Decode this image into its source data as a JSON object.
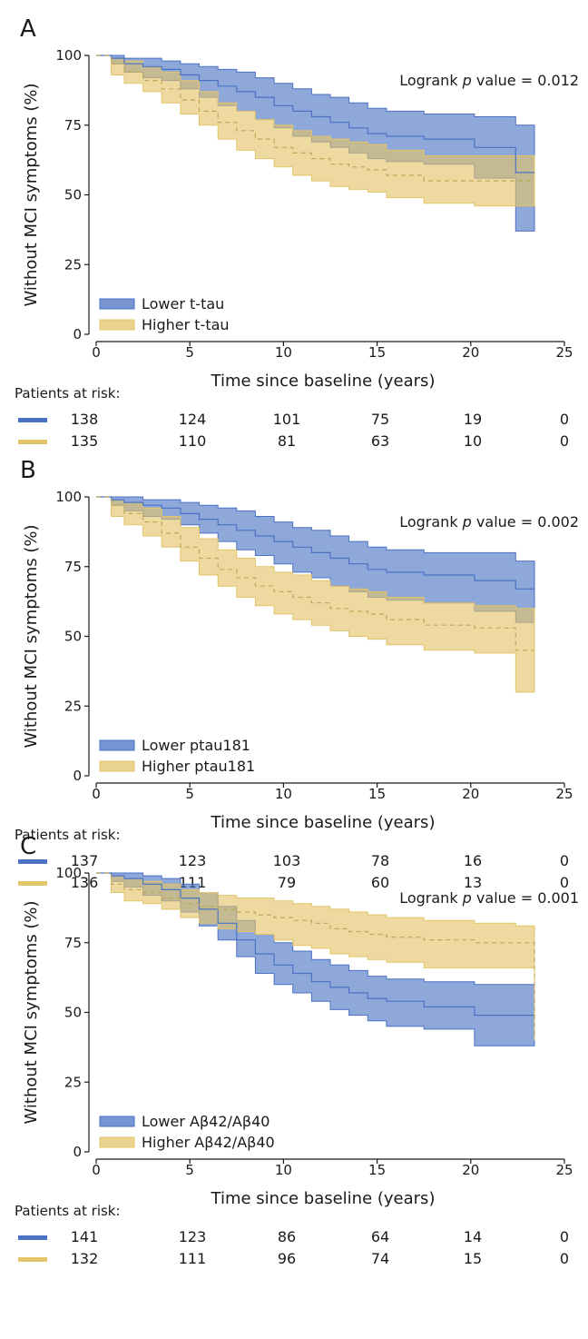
{
  "figure": {
    "colors": {
      "lower": "#4a72c4",
      "higher": "#e3c468",
      "lower_fill": "#4a72c4",
      "higher_fill": "#e3c468",
      "axis": "#1a1a1a"
    }
  },
  "chart_data": [
    {
      "panel_label": "A",
      "type": "line",
      "ylabel": "Without MCI symptoms (%)",
      "xlabel": "Time since baseline (years)",
      "xlim": [
        0,
        25
      ],
      "ylim": [
        0,
        100
      ],
      "xticks": [
        0,
        5,
        10,
        15,
        20,
        25
      ],
      "xtick_labels": [
        "0",
        "5",
        "10",
        "15",
        "20",
        "25"
      ],
      "yticks": [
        0,
        25,
        50,
        75,
        100
      ],
      "ytick_labels": [
        "0",
        "25",
        "50",
        "75",
        "100"
      ],
      "grid": false,
      "annotation": {
        "prefix": "Logrank ",
        "italic": "p",
        "suffix": " value = 0.012"
      },
      "legend_position": "bottom-left",
      "series": [
        {
          "name": "Lower t-tau",
          "color": "#4a72c4",
          "x": [
            0,
            0.8,
            1.5,
            2.5,
            3.5,
            4.5,
            5.5,
            6.5,
            7.5,
            8.5,
            9.5,
            10.5,
            11.5,
            12.5,
            13.5,
            14.5,
            15.5,
            17.5,
            20.2,
            22.4,
            23.4
          ],
          "y": [
            100,
            99,
            97,
            96,
            95,
            93,
            91,
            89,
            87,
            85,
            82,
            80,
            78,
            76,
            74,
            72,
            71,
            70,
            67,
            58,
            58
          ],
          "lower": [
            100,
            97,
            94,
            92,
            91,
            88,
            85,
            82,
            80,
            77,
            74,
            71,
            69,
            67,
            65,
            63,
            62,
            61,
            56,
            37,
            37
          ],
          "upper": [
            100,
            100,
            99,
            99,
            98,
            97,
            96,
            95,
            94,
            92,
            90,
            88,
            86,
            85,
            83,
            81,
            80,
            79,
            78,
            75,
            75
          ]
        },
        {
          "name": "Higher t-tau",
          "color": "#e3c468",
          "x": [
            0,
            0.8,
            1.5,
            2.5,
            3.5,
            4.5,
            5.5,
            6.5,
            7.5,
            8.5,
            9.5,
            10.5,
            11.5,
            12.5,
            13.5,
            14.5,
            15.5,
            17.5,
            20.2,
            22.4,
            23.4
          ],
          "y": [
            100,
            97,
            94,
            91,
            88,
            84,
            80,
            76,
            73,
            70,
            67,
            65,
            63,
            61,
            60,
            59,
            57,
            55,
            55,
            55,
            55
          ],
          "lower": [
            100,
            93,
            90,
            87,
            83,
            79,
            75,
            70,
            66,
            63,
            60,
            57,
            55,
            53,
            52,
            51,
            49,
            47,
            46,
            46,
            46
          ],
          "upper": [
            100,
            99,
            98,
            96,
            94,
            91,
            87,
            83,
            80,
            77,
            75,
            73,
            71,
            70,
            69,
            68,
            66,
            64,
            64,
            64,
            64
          ]
        }
      ],
      "at_risk": {
        "label": "Patients at risk:",
        "times": [
          0,
          5,
          10,
          15,
          20,
          25
        ],
        "rows": [
          {
            "color": "#4a72c4",
            "values": [
              "138",
              "124",
              "101",
              "75",
              "19",
              "0"
            ]
          },
          {
            "color": "#e3c468",
            "values": [
              "135",
              "110",
              "81",
              "63",
              "10",
              "0"
            ]
          }
        ]
      }
    },
    {
      "panel_label": "B",
      "type": "line",
      "ylabel": "Without MCI symptoms (%)",
      "xlabel": "Time since baseline (years)",
      "xlim": [
        0,
        25
      ],
      "ylim": [
        0,
        100
      ],
      "xticks": [
        0,
        5,
        10,
        15,
        20,
        25
      ],
      "xtick_labels": [
        "0",
        "5",
        "10",
        "15",
        "20",
        "25"
      ],
      "yticks": [
        0,
        25,
        50,
        75,
        100
      ],
      "ytick_labels": [
        "0",
        "25",
        "50",
        "75",
        "100"
      ],
      "grid": false,
      "annotation": {
        "prefix": "Logrank ",
        "italic": "p",
        "suffix": " value = 0.002"
      },
      "legend_position": "bottom-left",
      "series": [
        {
          "name": "Lower ptau181",
          "color": "#4a72c4",
          "x": [
            0,
            0.8,
            1.5,
            2.5,
            3.5,
            4.5,
            5.5,
            6.5,
            7.5,
            8.5,
            9.5,
            10.5,
            11.5,
            12.5,
            13.5,
            14.5,
            15.5,
            17.5,
            20.2,
            22.4,
            23.4
          ],
          "y": [
            100,
            99,
            98,
            97,
            96,
            94,
            92,
            90,
            88,
            86,
            84,
            82,
            80,
            78,
            76,
            74,
            73,
            72,
            70,
            67,
            67
          ],
          "lower": [
            100,
            97,
            95,
            93,
            92,
            90,
            87,
            84,
            81,
            79,
            76,
            73,
            71,
            68,
            66,
            64,
            63,
            62,
            59,
            55,
            55
          ],
          "upper": [
            100,
            100,
            100,
            99,
            99,
            98,
            97,
            96,
            95,
            93,
            91,
            89,
            88,
            86,
            84,
            82,
            81,
            80,
            80,
            77,
            77
          ]
        },
        {
          "name": "Higher ptau181",
          "color": "#e3c468",
          "x": [
            0,
            0.8,
            1.5,
            2.5,
            3.5,
            4.5,
            5.5,
            6.5,
            7.5,
            8.5,
            9.5,
            10.5,
            11.5,
            12.5,
            13.5,
            14.5,
            15.5,
            17.5,
            20.2,
            22.4,
            23.4
          ],
          "y": [
            100,
            97,
            94,
            91,
            87,
            82,
            78,
            74,
            71,
            68,
            66,
            64,
            62,
            60,
            59,
            58,
            56,
            54,
            53,
            45,
            45
          ],
          "lower": [
            100,
            93,
            90,
            86,
            82,
            77,
            72,
            68,
            64,
            61,
            58,
            56,
            54,
            52,
            50,
            49,
            47,
            45,
            44,
            30,
            30
          ],
          "upper": [
            100,
            99,
            98,
            96,
            93,
            89,
            85,
            81,
            78,
            75,
            73,
            72,
            70,
            68,
            67,
            66,
            64,
            62,
            61,
            60,
            60
          ]
        }
      ],
      "at_risk": {
        "label": "Patients at risk:",
        "times": [
          0,
          5,
          10,
          15,
          20,
          25
        ],
        "rows": [
          {
            "color": "#4a72c4",
            "values": [
              "137",
              "123",
              "103",
              "78",
              "16",
              "0"
            ]
          },
          {
            "color": "#e3c468",
            "values": [
              "136",
              "111",
              "79",
              "60",
              "13",
              "0"
            ]
          }
        ]
      }
    },
    {
      "panel_label": "C",
      "type": "line",
      "ylabel": "Without MCI symptoms (%)",
      "xlabel": "Time since baseline (years)",
      "xlim": [
        0,
        25
      ],
      "ylim": [
        0,
        100
      ],
      "xticks": [
        0,
        5,
        10,
        15,
        20,
        25
      ],
      "xtick_labels": [
        "0",
        "5",
        "10",
        "15",
        "20",
        "25"
      ],
      "yticks": [
        0,
        25,
        50,
        75,
        100
      ],
      "ytick_labels": [
        "0",
        "25",
        "50",
        "75",
        "100"
      ],
      "grid": false,
      "annotation": {
        "prefix": "Logrank ",
        "italic": "p",
        "suffix": " value = 0.001"
      },
      "legend_position": "bottom-left",
      "series": [
        {
          "name": "Lower Aβ42/Aβ40",
          "color": "#4a72c4",
          "x": [
            0,
            0.8,
            1.5,
            2.5,
            3.5,
            4.5,
            5.5,
            6.5,
            7.5,
            8.5,
            9.5,
            10.5,
            11.5,
            12.5,
            13.5,
            14.5,
            15.5,
            17.5,
            20.2,
            22.4,
            23.4
          ],
          "y": [
            100,
            99,
            98,
            96,
            94,
            91,
            87,
            82,
            76,
            71,
            67,
            64,
            61,
            59,
            57,
            55,
            54,
            52,
            49,
            49,
            49
          ],
          "lower": [
            100,
            97,
            95,
            92,
            90,
            86,
            81,
            76,
            70,
            64,
            60,
            57,
            54,
            51,
            49,
            47,
            45,
            44,
            38,
            38,
            38
          ],
          "upper": [
            100,
            100,
            100,
            99,
            98,
            96,
            93,
            88,
            83,
            78,
            75,
            72,
            69,
            67,
            65,
            63,
            62,
            61,
            60,
            60,
            60
          ]
        },
        {
          "name": "Higher Aβ42/Aβ40",
          "color": "#e3c468",
          "x": [
            0,
            0.8,
            1.5,
            2.5,
            3.5,
            4.5,
            5.5,
            6.5,
            7.5,
            8.5,
            9.5,
            10.5,
            11.5,
            12.5,
            13.5,
            14.5,
            15.5,
            17.5,
            20.2,
            22.4,
            23.4
          ],
          "y": [
            100,
            96,
            94,
            93,
            91,
            89,
            88,
            87,
            86,
            85,
            84,
            83,
            82,
            80,
            79,
            78,
            77,
            76,
            75,
            75,
            40
          ],
          "lower": [
            100,
            93,
            90,
            89,
            87,
            84,
            82,
            80,
            79,
            78,
            76,
            74,
            73,
            71,
            70,
            69,
            68,
            66,
            66,
            66,
            40
          ],
          "upper": [
            100,
            99,
            98,
            97,
            96,
            94,
            93,
            92,
            91,
            91,
            90,
            89,
            88,
            87,
            86,
            85,
            84,
            83,
            82,
            81,
            81
          ]
        }
      ],
      "at_risk": {
        "label": "Patients at risk:",
        "times": [
          0,
          5,
          10,
          15,
          20,
          25
        ],
        "rows": [
          {
            "color": "#4a72c4",
            "values": [
              "141",
              "123",
              "86",
              "64",
              "14",
              "0"
            ]
          },
          {
            "color": "#e3c468",
            "values": [
              "132",
              "111",
              "96",
              "74",
              "15",
              "0"
            ]
          }
        ]
      }
    }
  ]
}
